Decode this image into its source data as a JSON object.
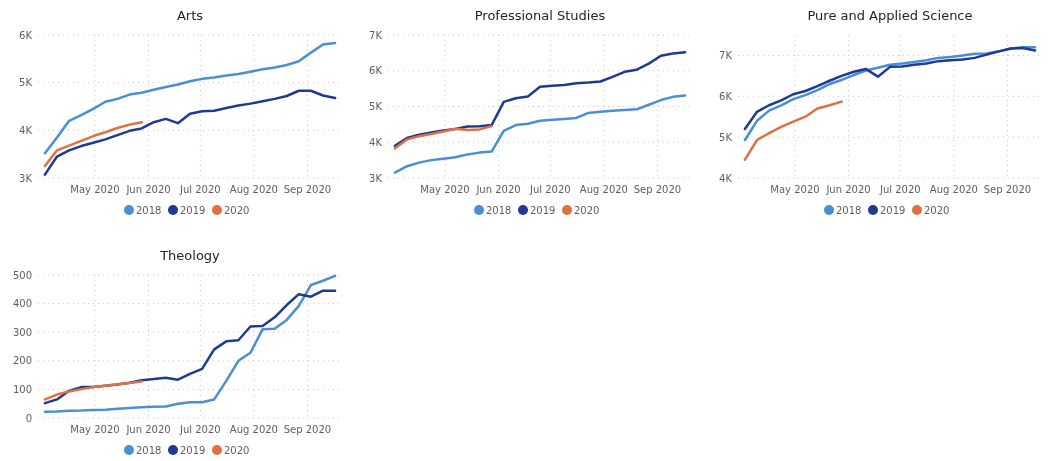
{
  "chart_data": [
    {
      "type": "line",
      "title": "Arts",
      "x": [
        "2020-04-02",
        "2020-04-09",
        "2020-04-16",
        "2020-04-23",
        "2020-04-30",
        "2020-05-07",
        "2020-05-14",
        "2020-05-21",
        "2020-05-28",
        "2020-06-04",
        "2020-06-11",
        "2020-06-18",
        "2020-06-25",
        "2020-07-02",
        "2020-07-09",
        "2020-07-16",
        "2020-07-23",
        "2020-07-30",
        "2020-08-06",
        "2020-08-13",
        "2020-08-20",
        "2020-08-27",
        "2020-09-03",
        "2020-09-10",
        "2020-09-17"
      ],
      "xlim": [
        "2020-03-29",
        "2020-09-21"
      ],
      "xticks": [
        {
          "value": "2020-05-01",
          "label": "May 2020"
        },
        {
          "value": "2020-06-01",
          "label": "Jun 2020"
        },
        {
          "value": "2020-07-01",
          "label": "Jul 2020"
        },
        {
          "value": "2020-08-01",
          "label": "Aug 2020"
        },
        {
          "value": "2020-09-01",
          "label": "Sep 2020"
        }
      ],
      "ylim": [
        3000,
        6000
      ],
      "yticks": [
        {
          "value": 3000,
          "label": "3K"
        },
        {
          "value": 4000,
          "label": "4K"
        },
        {
          "value": 5000,
          "label": "5K"
        },
        {
          "value": 6000,
          "label": "6K"
        }
      ],
      "grid": true,
      "legend": "bottom",
      "series": [
        {
          "name": "2018",
          "color": "#4a8fd4",
          "values": [
            3520,
            3850,
            4200,
            4320,
            4450,
            4600,
            4660,
            4750,
            4790,
            4850,
            4910,
            4960,
            5030,
            5080,
            5110,
            5150,
            5180,
            5230,
            5280,
            5320,
            5370,
            5450,
            5630,
            5800,
            5830
          ]
        },
        {
          "name": "2019",
          "color": "#1f3a93",
          "values": [
            3070,
            3450,
            3580,
            3670,
            3740,
            3810,
            3900,
            3990,
            4040,
            4170,
            4240,
            4150,
            4350,
            4400,
            4410,
            4470,
            4520,
            4560,
            4610,
            4660,
            4720,
            4830,
            4830,
            4730,
            4680
          ]
        },
        {
          "name": "2020",
          "color": "#e07040",
          "x": [
            "2020-04-02",
            "2020-04-09",
            "2020-04-16",
            "2020-04-23",
            "2020-04-30",
            "2020-05-07",
            "2020-05-14",
            "2020-05-21",
            "2020-05-28"
          ],
          "values": [
            3250,
            3580,
            3680,
            3780,
            3880,
            3960,
            4050,
            4120,
            4170
          ]
        }
      ]
    },
    {
      "type": "line",
      "title": "Professional Studies",
      "x": [
        "2020-04-02",
        "2020-04-09",
        "2020-04-16",
        "2020-04-23",
        "2020-04-30",
        "2020-05-07",
        "2020-05-14",
        "2020-05-21",
        "2020-05-28",
        "2020-06-04",
        "2020-06-11",
        "2020-06-18",
        "2020-06-25",
        "2020-07-02",
        "2020-07-09",
        "2020-07-16",
        "2020-07-23",
        "2020-07-30",
        "2020-08-06",
        "2020-08-13",
        "2020-08-20",
        "2020-08-27",
        "2020-09-03",
        "2020-09-10",
        "2020-09-17"
      ],
      "xlim": [
        "2020-03-29",
        "2020-09-21"
      ],
      "xticks": [
        {
          "value": "2020-05-01",
          "label": "May 2020"
        },
        {
          "value": "2020-06-01",
          "label": "Jun 2020"
        },
        {
          "value": "2020-07-01",
          "label": "Jul 2020"
        },
        {
          "value": "2020-08-01",
          "label": "Aug 2020"
        },
        {
          "value": "2020-09-01",
          "label": "Sep 2020"
        }
      ],
      "ylim": [
        3000,
        7000
      ],
      "yticks": [
        {
          "value": 3000,
          "label": "3K"
        },
        {
          "value": 4000,
          "label": "4K"
        },
        {
          "value": 5000,
          "label": "5K"
        },
        {
          "value": 6000,
          "label": "6K"
        },
        {
          "value": 7000,
          "label": "7K"
        }
      ],
      "grid": true,
      "legend": "bottom",
      "series": [
        {
          "name": "2018",
          "color": "#4a8fd4",
          "values": [
            3150,
            3330,
            3430,
            3500,
            3540,
            3580,
            3660,
            3710,
            3740,
            4320,
            4480,
            4520,
            4600,
            4630,
            4650,
            4680,
            4820,
            4850,
            4880,
            4900,
            4920,
            5050,
            5180,
            5270,
            5310
          ]
        },
        {
          "name": "2019",
          "color": "#1f3a93",
          "values": [
            3900,
            4120,
            4210,
            4270,
            4330,
            4370,
            4440,
            4450,
            4480,
            5130,
            5230,
            5280,
            5550,
            5580,
            5600,
            5650,
            5670,
            5700,
            5830,
            5970,
            6030,
            6200,
            6420,
            6480,
            6520
          ]
        },
        {
          "name": "2020",
          "color": "#e07040",
          "x": [
            "2020-04-02",
            "2020-04-09",
            "2020-04-16",
            "2020-04-23",
            "2020-04-30",
            "2020-05-07",
            "2020-05-14",
            "2020-05-21",
            "2020-05-28"
          ],
          "values": [
            3830,
            4080,
            4170,
            4230,
            4300,
            4380,
            4340,
            4360,
            4450
          ]
        }
      ]
    },
    {
      "type": "line",
      "title": "Pure and Applied Science",
      "x": [
        "2020-04-02",
        "2020-04-09",
        "2020-04-16",
        "2020-04-23",
        "2020-04-30",
        "2020-05-07",
        "2020-05-14",
        "2020-05-21",
        "2020-05-28",
        "2020-06-04",
        "2020-06-11",
        "2020-06-18",
        "2020-06-25",
        "2020-07-02",
        "2020-07-09",
        "2020-07-16",
        "2020-07-23",
        "2020-07-30",
        "2020-08-06",
        "2020-08-13",
        "2020-08-20",
        "2020-08-27",
        "2020-09-03",
        "2020-09-10",
        "2020-09-17"
      ],
      "xlim": [
        "2020-03-29",
        "2020-09-21"
      ],
      "xticks": [
        {
          "value": "2020-05-01",
          "label": "May 2020"
        },
        {
          "value": "2020-06-01",
          "label": "Jun 2020"
        },
        {
          "value": "2020-07-01",
          "label": "Jul 2020"
        },
        {
          "value": "2020-08-01",
          "label": "Aug 2020"
        },
        {
          "value": "2020-09-01",
          "label": "Sep 2020"
        }
      ],
      "ylim": [
        4000,
        7500
      ],
      "yticks": [
        {
          "value": 4000,
          "label": "4K"
        },
        {
          "value": 5000,
          "label": "5K"
        },
        {
          "value": 6000,
          "label": "6K"
        },
        {
          "value": 7000,
          "label": "7K"
        }
      ],
      "grid": true,
      "legend": "bottom",
      "series": [
        {
          "name": "2018",
          "color": "#4a8fd4",
          "values": [
            4930,
            5400,
            5650,
            5780,
            5930,
            6030,
            6150,
            6300,
            6400,
            6520,
            6630,
            6700,
            6770,
            6800,
            6840,
            6880,
            6940,
            6960,
            7000,
            7040,
            7050,
            7100,
            7170,
            7200,
            7200
          ]
        },
        {
          "name": "2019",
          "color": "#1f3a93",
          "values": [
            5200,
            5620,
            5780,
            5900,
            6050,
            6130,
            6250,
            6380,
            6500,
            6600,
            6670,
            6480,
            6720,
            6730,
            6770,
            6800,
            6860,
            6880,
            6900,
            6940,
            7020,
            7100,
            7170,
            7180,
            7120
          ]
        },
        {
          "name": "2020",
          "color": "#e07040",
          "x": [
            "2020-04-02",
            "2020-04-09",
            "2020-04-16",
            "2020-04-23",
            "2020-04-30",
            "2020-05-07",
            "2020-05-14",
            "2020-05-21",
            "2020-05-28"
          ],
          "values": [
            4450,
            4930,
            5100,
            5250,
            5380,
            5500,
            5700,
            5780,
            5870
          ]
        }
      ]
    },
    {
      "type": "line",
      "title": "Theology",
      "x": [
        "2020-04-02",
        "2020-04-09",
        "2020-04-16",
        "2020-04-23",
        "2020-04-30",
        "2020-05-07",
        "2020-05-14",
        "2020-05-21",
        "2020-05-28",
        "2020-06-04",
        "2020-06-11",
        "2020-06-18",
        "2020-06-25",
        "2020-07-02",
        "2020-07-09",
        "2020-07-16",
        "2020-07-23",
        "2020-07-30",
        "2020-08-06",
        "2020-08-13",
        "2020-08-20",
        "2020-08-27",
        "2020-09-03",
        "2020-09-10",
        "2020-09-17"
      ],
      "xlim": [
        "2020-03-29",
        "2020-09-21"
      ],
      "xticks": [
        {
          "value": "2020-05-01",
          "label": "May 2020"
        },
        {
          "value": "2020-06-01",
          "label": "Jun 2020"
        },
        {
          "value": "2020-07-01",
          "label": "Jul 2020"
        },
        {
          "value": "2020-08-01",
          "label": "Aug 2020"
        },
        {
          "value": "2020-09-01",
          "label": "Sep 2020"
        }
      ],
      "ylim": [
        0,
        500
      ],
      "yticks": [
        0,
        100,
        200,
        300,
        400,
        500
      ],
      "grid": true,
      "legend": "bottom",
      "series": [
        {
          "name": "2018",
          "color": "#4a8fd4",
          "values": [
            22,
            23,
            25,
            26,
            28,
            29,
            32,
            35,
            38,
            39,
            40,
            50,
            55,
            55,
            65,
            130,
            200,
            228,
            310,
            312,
            343,
            392,
            465,
            480,
            497
          ]
        },
        {
          "name": "2019",
          "color": "#1f3a93",
          "values": [
            52,
            65,
            95,
            108,
            108,
            113,
            117,
            123,
            132,
            136,
            141,
            134,
            154,
            172,
            240,
            268,
            272,
            320,
            322,
            352,
            395,
            433,
            424,
            445,
            445
          ]
        },
        {
          "name": "2020",
          "color": "#e07040",
          "x": [
            "2020-04-02",
            "2020-04-09",
            "2020-04-16",
            "2020-04-23",
            "2020-04-30",
            "2020-05-07",
            "2020-05-14",
            "2020-05-21",
            "2020-05-28"
          ],
          "values": [
            65,
            82,
            93,
            101,
            108,
            113,
            118,
            122,
            128
          ]
        }
      ]
    }
  ]
}
